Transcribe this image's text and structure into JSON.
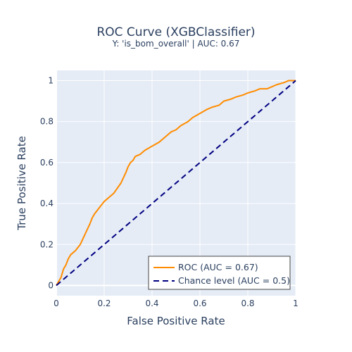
{
  "chart_data": {
    "type": "line",
    "title": "ROC Curve (XGBClassifier)",
    "subtitle": "Y: 'is_bom_overall' | AUC: 0.67",
    "xlabel": "False Positive Rate",
    "ylabel": "True Positive Rate",
    "xlim": [
      0,
      1
    ],
    "ylim": [
      -0.05,
      1.05
    ],
    "x_ticks": [
      "0",
      "0.2",
      "0.4",
      "0.6",
      "0.8",
      "1"
    ],
    "y_ticks": [
      "0",
      "0.2",
      "0.4",
      "0.6",
      "0.8",
      "1"
    ],
    "grid": true,
    "legend_position": "bottom-right",
    "series": [
      {
        "name": "ROC (AUC = 0.67)",
        "color": "#ff8c00",
        "dash": "solid",
        "x": [
          0,
          0.01,
          0.02,
          0.03,
          0.04,
          0.05,
          0.06,
          0.08,
          0.1,
          0.12,
          0.14,
          0.15,
          0.16,
          0.18,
          0.2,
          0.22,
          0.24,
          0.27,
          0.29,
          0.3,
          0.31,
          0.32,
          0.33,
          0.35,
          0.37,
          0.4,
          0.43,
          0.45,
          0.48,
          0.5,
          0.52,
          0.55,
          0.57,
          0.6,
          0.63,
          0.65,
          0.68,
          0.7,
          0.73,
          0.75,
          0.78,
          0.8,
          0.83,
          0.85,
          0.88,
          0.9,
          0.92,
          0.95,
          0.97,
          1.0
        ],
        "y": [
          0,
          0.02,
          0.04,
          0.08,
          0.1,
          0.13,
          0.15,
          0.17,
          0.2,
          0.25,
          0.3,
          0.33,
          0.35,
          0.38,
          0.41,
          0.43,
          0.45,
          0.5,
          0.55,
          0.58,
          0.6,
          0.61,
          0.63,
          0.64,
          0.66,
          0.68,
          0.7,
          0.72,
          0.75,
          0.76,
          0.78,
          0.8,
          0.82,
          0.84,
          0.86,
          0.87,
          0.88,
          0.9,
          0.91,
          0.92,
          0.93,
          0.94,
          0.95,
          0.96,
          0.96,
          0.97,
          0.98,
          0.99,
          1.0,
          1.0
        ]
      },
      {
        "name": "Chance level (AUC = 0.5)",
        "color": "#000080",
        "dash": "dash",
        "x": [
          0,
          1
        ],
        "y": [
          0,
          1
        ]
      }
    ]
  },
  "colors": {
    "plot_background": "#e5ecf6",
    "grid": "#ffffff",
    "text": "#2a3f5f"
  }
}
